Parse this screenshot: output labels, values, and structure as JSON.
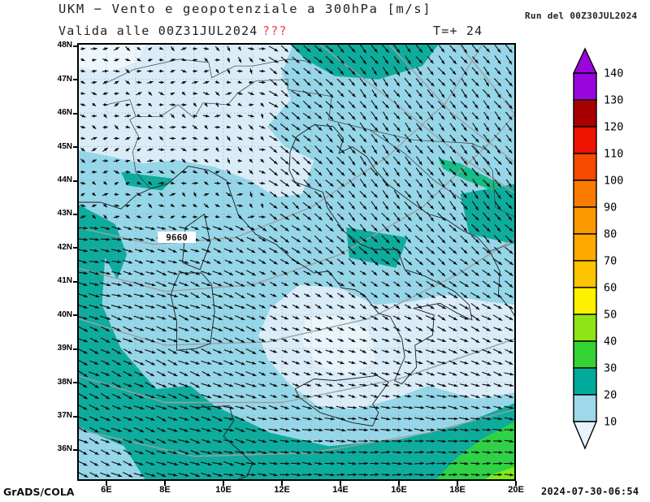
{
  "header": {
    "title": "UKM − Vento e geopotenziale a 300hPa [m/s]",
    "valid_label": "Valida alle 00Z31JUL2024",
    "missing_flag": "???",
    "forecast_lead": "T=+ 24",
    "run_label": "Run del 00Z30JUL2024"
  },
  "footer": {
    "credit": "GrADS/COLA",
    "generated": "2024-07-30-06:54"
  },
  "map": {
    "contour_label": "9660",
    "lat_ticks": [
      "48N",
      "47N",
      "46N",
      "45N",
      "44N",
      "43N",
      "42N",
      "41N",
      "40N",
      "39N",
      "38N",
      "37N",
      "36N"
    ],
    "lon_ticks": [
      "6E",
      "8E",
      "10E",
      "12E",
      "14E",
      "16E",
      "18E",
      "20E"
    ]
  },
  "colorbar": {
    "labels_top_to_bottom": [
      "140",
      "130",
      "120",
      "110",
      "100",
      "90",
      "80",
      "70",
      "60",
      "50",
      "40",
      "30",
      "20",
      "10"
    ],
    "segment_colors_top_to_bottom": [
      "#9905DD",
      "#A80000",
      "#EE1200",
      "#F64A00",
      "#F97C00",
      "#FB9800",
      "#FFA900",
      "#FFC400",
      "#FFF000",
      "#8EE414",
      "#32D332",
      "#00AB9B",
      "#9FD8EA"
    ],
    "above_max_color": "#9905DD",
    "below_min_color": "#E8F3FB"
  },
  "chart_data": {
    "type": "vector_field_map",
    "title": "UKM − Vento e geopotenziale a 300hPa [m/s]",
    "model": "UKM",
    "variables": "wind vectors + geopotential contours, wind speed shading",
    "level": "300hPa",
    "units": "m/s",
    "valid_time": "00Z31JUL2024",
    "run_time": "00Z30JUL2024",
    "forecast_hour": 24,
    "lon_range_deg_e": [
      5,
      20
    ],
    "lat_range_deg_n": [
      35,
      48
    ],
    "lon_ticks": [
      "6E",
      "8E",
      "10E",
      "12E",
      "14E",
      "16E",
      "18E",
      "20E"
    ],
    "lat_ticks": [
      "36N",
      "37N",
      "38N",
      "39N",
      "40N",
      "41N",
      "42N",
      "43N",
      "44N",
      "45N",
      "46N",
      "47N",
      "48N"
    ],
    "shading_levels_m_s": [
      10,
      20,
      30,
      40,
      50,
      60,
      70,
      80,
      90,
      100,
      110,
      120,
      130,
      140
    ],
    "shading_colors_low_to_high": [
      "#E8F3FB",
      "#9FD8EA",
      "#00AB9B",
      "#32D332",
      "#8EE414",
      "#FFF000",
      "#FFC400",
      "#FFA900",
      "#FB9800",
      "#F97C00",
      "#F64A00",
      "#EE1200",
      "#A80000",
      "#9905DD"
    ],
    "contour_labels": [
      "9660"
    ],
    "legend_position": "right",
    "notes": "Wind speeds on map mostly in 10–30 m/s shading classes; small 30–50 m/s patches at bottom-right corner and a 20–30 m/s streak near 18E/44.5N; weak variable winds over NW Alps region"
  }
}
